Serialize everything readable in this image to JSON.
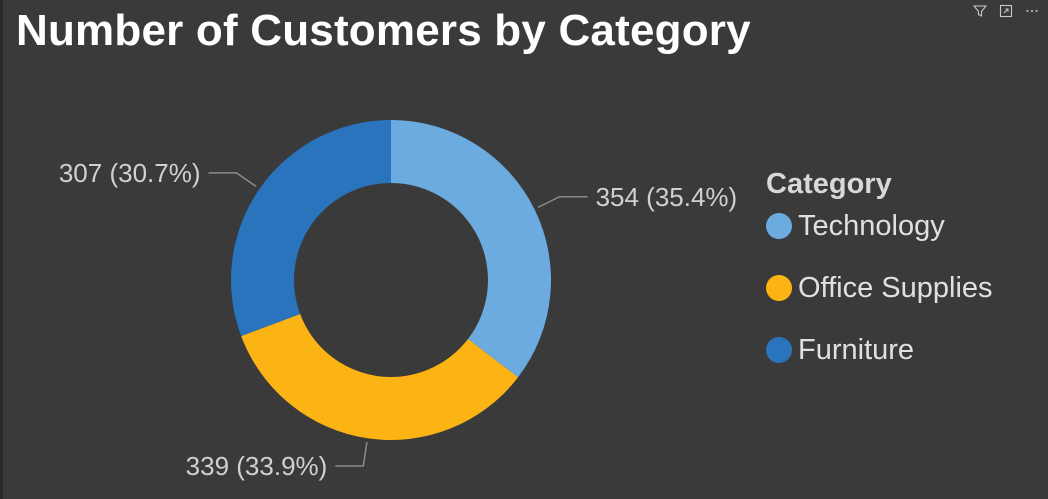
{
  "header": {
    "icons": [
      "filter-icon",
      "focus-mode-icon",
      "more-options-icon"
    ]
  },
  "chart_data": {
    "type": "pie",
    "variant": "donut",
    "title": "Number of Customers by Category",
    "legend_title": "Category",
    "legend_position": "right",
    "categories": [
      "Technology",
      "Office Supplies",
      "Furniture"
    ],
    "values": [
      354,
      339,
      307
    ],
    "data_labels": [
      "354 (35.4%)",
      "339 (33.9%)",
      "307 (30.7%)"
    ],
    "colors": [
      "#6cabe0",
      "#fcb414",
      "#2a74bd"
    ]
  }
}
